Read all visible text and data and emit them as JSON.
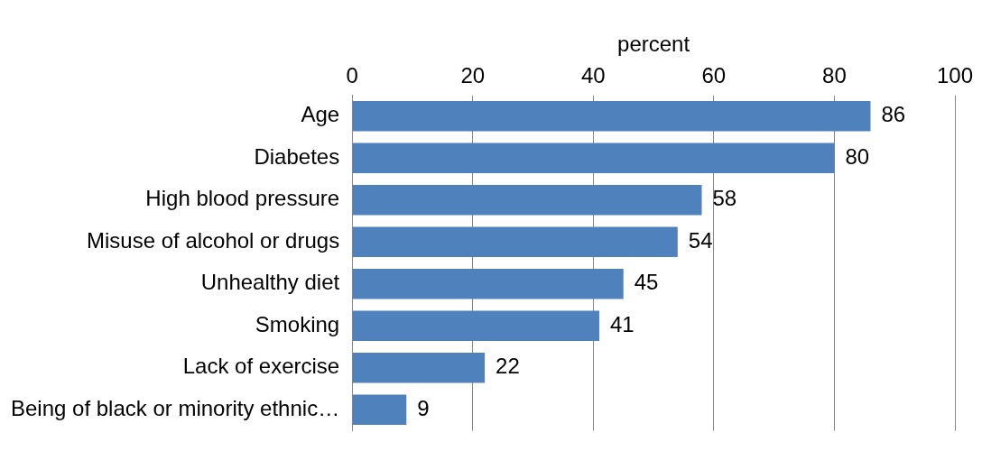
{
  "chart_data": {
    "type": "bar",
    "orientation": "horizontal",
    "xlabel": "percent",
    "categories": [
      "Age",
      "Diabetes",
      "High blood pressure",
      "Misuse of alcohol or drugs",
      "Unhealthy diet",
      "Smoking",
      "Lack of exercise",
      "Being of black or minority ethnic…"
    ],
    "values": [
      86,
      80,
      58,
      54,
      45,
      41,
      22,
      9
    ],
    "color": "#4f81bd",
    "data_labels": true,
    "xlim": [
      0,
      100
    ],
    "xticks": [
      0,
      20,
      40,
      60,
      80,
      100
    ],
    "grid": "x",
    "legend": false
  }
}
